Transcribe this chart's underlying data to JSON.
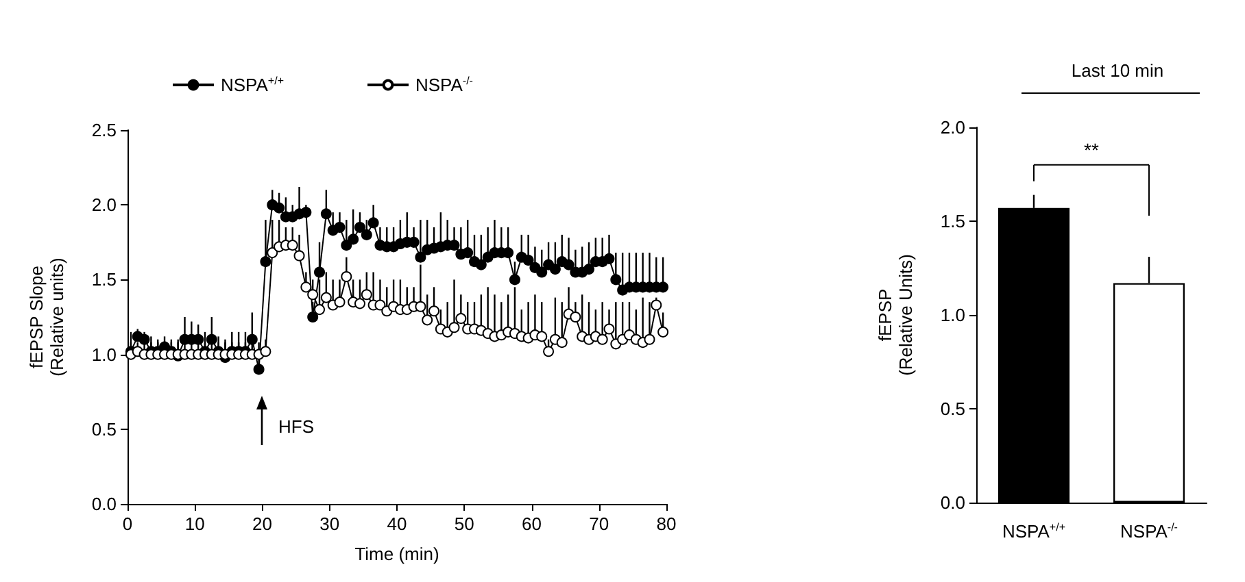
{
  "chart_data": [
    {
      "type": "line",
      "xlabel": "Time (min)",
      "ylabel": "fEPSP Slope\n(Relative units)",
      "xlim": [
        0,
        80
      ],
      "xticks": [
        0,
        10,
        20,
        30,
        40,
        50,
        60,
        70,
        80
      ],
      "ylim": [
        0,
        2.5
      ],
      "yticks": [
        {
          "value": 0,
          "label": "0.0"
        },
        0.5,
        {
          "value": 1,
          "label": "1.0"
        },
        1.5,
        {
          "value": 2,
          "label": "2.0"
        },
        2.5
      ],
      "grid": false,
      "legend": "top",
      "marker": "circle",
      "line_style": "solid",
      "annotations": [
        "HFS"
      ],
      "x": [
        0.5,
        1.5,
        2.5,
        3.5,
        4.5,
        5.5,
        6.5,
        7.5,
        8.5,
        9.5,
        10.5,
        11.5,
        12.5,
        13.5,
        14.5,
        15.5,
        16.5,
        17.5,
        18.5,
        19.5,
        20.5,
        21.5,
        22.5,
        23.5,
        24.5,
        25.5,
        26.5,
        27.5,
        28.5,
        29.5,
        30.5,
        31.5,
        32.5,
        33.5,
        34.5,
        35.5,
        36.5,
        37.5,
        38.5,
        39.5,
        40.5,
        41.5,
        42.5,
        43.5,
        44.5,
        45.5,
        46.5,
        47.5,
        48.5,
        49.5,
        50.5,
        51.5,
        52.5,
        53.5,
        54.5,
        55.5,
        56.5,
        57.5,
        58.5,
        59.5,
        60.5,
        61.5,
        62.5,
        63.5,
        64.5,
        65.5,
        66.5,
        67.5,
        68.5,
        69.5,
        70.5,
        71.5,
        72.5,
        73.5,
        74.5,
        75.5,
        76.5,
        77.5,
        78.5,
        79.5
      ],
      "series": [
        {
          "name": "NSPA$^{+/+}$",
          "color": "#000000",
          "values": [
            1.02,
            1.12,
            1.1,
            1.02,
            1.02,
            1.05,
            1.02,
            0.99,
            1.1,
            1.1,
            1.1,
            1.02,
            1.1,
            1.02,
            0.98,
            1.02,
            1.02,
            1.02,
            1.1,
            0.9,
            1.62,
            2.0,
            1.98,
            1.92,
            1.92,
            1.94,
            1.95,
            1.25,
            1.55,
            1.94,
            1.83,
            1.85,
            1.73,
            1.77,
            1.85,
            1.8,
            1.88,
            1.73,
            1.72,
            1.72,
            1.74,
            1.75,
            1.75,
            1.65,
            1.7,
            1.71,
            1.72,
            1.73,
            1.73,
            1.67,
            1.68,
            1.62,
            1.6,
            1.65,
            1.68,
            1.68,
            1.68,
            1.5,
            1.65,
            1.63,
            1.58,
            1.55,
            1.6,
            1.57,
            1.62,
            1.6,
            1.55,
            1.55,
            1.57,
            1.62,
            1.62,
            1.64,
            1.5,
            1.43,
            1.45,
            1.45,
            1.45,
            1.45,
            1.45,
            1.45
          ],
          "errors": [
            [
              1.02,
              1.15
            ],
            [
              1.12,
              1.17
            ],
            [
              1.1,
              1.15
            ],
            [
              1.02,
              1.12
            ],
            [
              1.02,
              1.1
            ],
            [
              1.05,
              1.12
            ],
            [
              1.02,
              1.1
            ],
            [
              0.99,
              1.1
            ],
            [
              1.1,
              1.25
            ],
            [
              1.1,
              1.22
            ],
            [
              1.1,
              1.2
            ],
            [
              1.02,
              1.15
            ],
            [
              1.1,
              1.25
            ],
            [
              1.02,
              1.12
            ],
            [
              0.98,
              1.1
            ],
            [
              1.02,
              1.15
            ],
            [
              1.02,
              1.15
            ],
            [
              1.02,
              1.15
            ],
            [
              1.1,
              1.28
            ],
            [
              0.9,
              1.0
            ],
            [
              1.62,
              1.9
            ],
            [
              2.0,
              2.1
            ],
            [
              1.98,
              2.08
            ],
            [
              1.92,
              2.05
            ],
            [
              1.92,
              2.0
            ],
            [
              1.94,
              2.12
            ],
            [
              1.95,
              2.0
            ],
            [
              1.25,
              1.35
            ],
            [
              1.55,
              1.75
            ],
            [
              1.94,
              2.1
            ],
            [
              1.83,
              1.95
            ],
            [
              1.85,
              1.95
            ],
            [
              1.73,
              1.9
            ],
            [
              1.77,
              1.97
            ],
            [
              1.85,
              1.95
            ],
            [
              1.8,
              1.9
            ],
            [
              1.88,
              2.0
            ],
            [
              1.73,
              1.85
            ],
            [
              1.72,
              1.85
            ],
            [
              1.72,
              1.85
            ],
            [
              1.74,
              1.9
            ],
            [
              1.75,
              1.95
            ],
            [
              1.75,
              1.85
            ],
            [
              1.65,
              1.9
            ],
            [
              1.7,
              1.9
            ],
            [
              1.71,
              1.85
            ],
            [
              1.72,
              1.95
            ],
            [
              1.73,
              1.9
            ],
            [
              1.73,
              1.85
            ],
            [
              1.67,
              1.85
            ],
            [
              1.68,
              1.9
            ],
            [
              1.62,
              1.8
            ],
            [
              1.6,
              1.8
            ],
            [
              1.65,
              1.85
            ],
            [
              1.68,
              1.9
            ],
            [
              1.68,
              1.85
            ],
            [
              1.68,
              1.85
            ],
            [
              1.5,
              1.62
            ],
            [
              1.65,
              1.8
            ],
            [
              1.63,
              1.8
            ],
            [
              1.58,
              1.72
            ],
            [
              1.55,
              1.7
            ],
            [
              1.6,
              1.75
            ],
            [
              1.57,
              1.75
            ],
            [
              1.62,
              1.8
            ],
            [
              1.6,
              1.78
            ],
            [
              1.55,
              1.7
            ],
            [
              1.55,
              1.72
            ],
            [
              1.57,
              1.75
            ],
            [
              1.62,
              1.78
            ],
            [
              1.62,
              1.78
            ],
            [
              1.64,
              1.8
            ],
            [
              1.5,
              1.68
            ],
            [
              1.43,
              1.68
            ],
            [
              1.45,
              1.68
            ],
            [
              1.45,
              1.68
            ],
            [
              1.45,
              1.68
            ],
            [
              1.45,
              1.68
            ],
            [
              1.45,
              1.65
            ],
            [
              1.45,
              1.65
            ]
          ]
        },
        {
          "name": "NSPA$^{-/-}$",
          "color": "#ffffff",
          "values": [
            1.0,
            1.02,
            1.0,
            1.0,
            1.0,
            1.0,
            1.0,
            1.0,
            1.0,
            1.0,
            1.0,
            1.0,
            1.0,
            1.0,
            1.0,
            1.0,
            1.0,
            1.0,
            1.0,
            1.0,
            1.02,
            1.68,
            1.72,
            1.73,
            1.73,
            1.66,
            1.45,
            1.4,
            1.3,
            1.38,
            1.33,
            1.35,
            1.52,
            1.35,
            1.34,
            1.4,
            1.33,
            1.33,
            1.29,
            1.32,
            1.3,
            1.3,
            1.32,
            1.32,
            1.23,
            1.29,
            1.17,
            1.15,
            1.18,
            1.24,
            1.17,
            1.17,
            1.16,
            1.14,
            1.12,
            1.13,
            1.15,
            1.14,
            1.12,
            1.11,
            1.13,
            1.12,
            1.02,
            1.1,
            1.08,
            1.27,
            1.25,
            1.12,
            1.1,
            1.12,
            1.1,
            1.17,
            1.07,
            1.1,
            1.13,
            1.1,
            1.08,
            1.1,
            1.33,
            1.15
          ],
          "errors": [
            [
              1.0,
              1.08
            ],
            [
              1.02,
              1.08
            ],
            [
              1.0,
              1.08
            ],
            [
              1.0,
              1.08
            ],
            [
              1.0,
              1.08
            ],
            [
              1.0,
              1.08
            ],
            [
              1.0,
              1.08
            ],
            [
              1.0,
              1.08
            ],
            [
              1.0,
              1.08
            ],
            [
              1.0,
              1.08
            ],
            [
              1.0,
              1.08
            ],
            [
              1.0,
              1.08
            ],
            [
              1.0,
              1.08
            ],
            [
              1.0,
              1.08
            ],
            [
              1.0,
              1.08
            ],
            [
              1.0,
              1.08
            ],
            [
              1.0,
              1.08
            ],
            [
              1.0,
              1.08
            ],
            [
              1.0,
              1.08
            ],
            [
              1.0,
              1.08
            ],
            [
              1.02,
              1.1
            ],
            [
              1.68,
              1.9
            ],
            [
              1.72,
              1.9
            ],
            [
              1.73,
              1.85
            ],
            [
              1.73,
              1.85
            ],
            [
              1.66,
              1.8
            ],
            [
              1.45,
              1.55
            ],
            [
              1.4,
              1.5
            ],
            [
              1.3,
              1.5
            ],
            [
              1.38,
              1.55
            ],
            [
              1.33,
              1.5
            ],
            [
              1.35,
              1.5
            ],
            [
              1.52,
              1.65
            ],
            [
              1.35,
              1.5
            ],
            [
              1.34,
              1.5
            ],
            [
              1.4,
              1.55
            ],
            [
              1.33,
              1.55
            ],
            [
              1.33,
              1.5
            ],
            [
              1.29,
              1.45
            ],
            [
              1.32,
              1.5
            ],
            [
              1.3,
              1.5
            ],
            [
              1.3,
              1.45
            ],
            [
              1.32,
              1.45
            ],
            [
              1.32,
              1.6
            ],
            [
              1.23,
              1.4
            ],
            [
              1.29,
              1.45
            ],
            [
              1.17,
              1.3
            ],
            [
              1.15,
              1.35
            ],
            [
              1.18,
              1.5
            ],
            [
              1.24,
              1.4
            ],
            [
              1.17,
              1.35
            ],
            [
              1.17,
              1.35
            ],
            [
              1.16,
              1.4
            ],
            [
              1.14,
              1.45
            ],
            [
              1.12,
              1.4
            ],
            [
              1.13,
              1.35
            ],
            [
              1.15,
              1.4
            ],
            [
              1.14,
              1.45
            ],
            [
              1.12,
              1.3
            ],
            [
              1.11,
              1.35
            ],
            [
              1.13,
              1.4
            ],
            [
              1.12,
              1.35
            ],
            [
              1.02,
              1.1
            ],
            [
              1.1,
              1.38
            ],
            [
              1.08,
              1.35
            ],
            [
              1.27,
              1.45
            ],
            [
              1.25,
              1.35
            ],
            [
              1.12,
              1.4
            ],
            [
              1.1,
              1.35
            ],
            [
              1.12,
              1.3
            ],
            [
              1.1,
              1.35
            ],
            [
              1.17,
              1.3
            ],
            [
              1.07,
              1.35
            ],
            [
              1.1,
              1.35
            ],
            [
              1.13,
              1.35
            ],
            [
              1.1,
              1.3
            ],
            [
              1.08,
              1.38
            ],
            [
              1.1,
              1.35
            ],
            [
              1.33,
              1.38
            ],
            [
              1.15,
              1.28
            ]
          ]
        }
      ]
    },
    {
      "type": "bar",
      "title": "Last 10 min",
      "ylabel": "fEPSP\n(Relative Units)",
      "categories": [
        "NSPA$^{+/+}$",
        "NSPA$^{-/-}$"
      ],
      "values": [
        1.57,
        1.17
      ],
      "colors": [
        "#000000",
        "#ffffff"
      ],
      "errors": [
        [
          1.57,
          1.64
        ],
        [
          1.17,
          1.31
        ]
      ],
      "ylim": [
        0,
        2
      ],
      "yticks": [
        {
          "value": 0,
          "label": "0.0"
        },
        0.5,
        {
          "value": 1,
          "label": "1.0"
        },
        1.5,
        {
          "value": 2,
          "label": "2.0"
        }
      ],
      "grid": false,
      "annotations": [
        "**"
      ]
    }
  ]
}
